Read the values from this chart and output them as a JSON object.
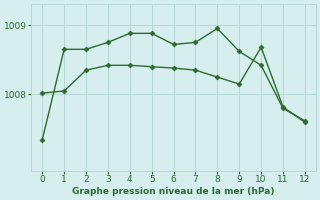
{
  "line1_x": [
    0,
    1,
    2,
    3,
    4,
    5,
    6,
    7,
    8,
    9,
    10,
    11,
    12
  ],
  "line1_y": [
    1007.35,
    1008.65,
    1008.65,
    1008.75,
    1008.88,
    1008.88,
    1008.72,
    1008.75,
    1008.95,
    1008.62,
    1008.42,
    1007.8,
    1007.62
  ],
  "line2_x": [
    0,
    1,
    2,
    3,
    4,
    5,
    6,
    7,
    8,
    9,
    10,
    11,
    12
  ],
  "line2_y": [
    1008.02,
    1008.05,
    1008.35,
    1008.42,
    1008.42,
    1008.4,
    1008.38,
    1008.35,
    1008.25,
    1008.15,
    1008.68,
    1007.82,
    1007.6
  ],
  "line_color": "#2d6a2d",
  "bg_color": "#d6eeee",
  "grid_color": "#b8d8d8",
  "xlabel": "Graphe pression niveau de la mer (hPa)",
  "xlim": [
    -0.5,
    12.5
  ],
  "ylim": [
    1006.9,
    1009.3
  ],
  "yticks": [
    1008,
    1009
  ],
  "xticks": [
    0,
    1,
    2,
    3,
    4,
    5,
    6,
    7,
    8,
    9,
    10,
    11,
    12
  ],
  "marker": "D",
  "markersize": 2.5,
  "linewidth": 1.0
}
